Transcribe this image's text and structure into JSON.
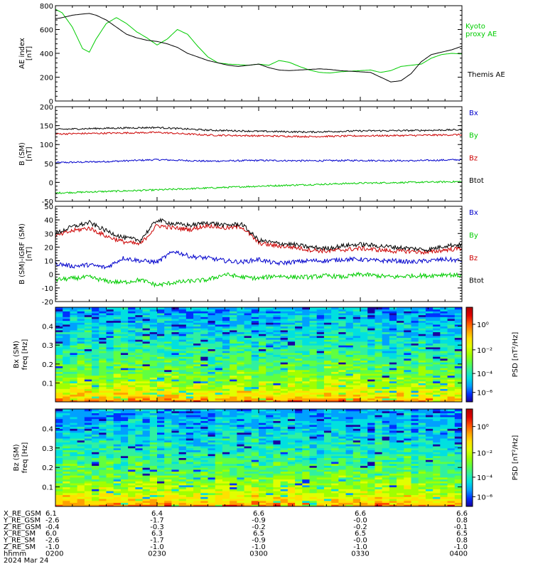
{
  "chart_data": [
    {
      "type": "line",
      "ylabel": "AE index",
      "yunit": "[nT]",
      "ylim": [
        0,
        800
      ],
      "yticks": [
        0,
        200,
        400,
        600,
        800
      ],
      "series": [
        {
          "name": "Kyoto proxy AE",
          "color": "#00cc00",
          "x": [
            0,
            2,
            5,
            8,
            10,
            12,
            15,
            18,
            21,
            24,
            27,
            30,
            33,
            36,
            39,
            42,
            45,
            48,
            51,
            54,
            57,
            60,
            63,
            66,
            69,
            72,
            75,
            78,
            81,
            84,
            87,
            90,
            93,
            96,
            99,
            102,
            105,
            108,
            111,
            114,
            117,
            120
          ],
          "y": [
            770,
            740,
            620,
            440,
            410,
            520,
            650,
            700,
            650,
            580,
            530,
            470,
            520,
            600,
            560,
            460,
            370,
            320,
            310,
            305,
            300,
            310,
            300,
            340,
            325,
            290,
            260,
            240,
            235,
            245,
            250,
            255,
            260,
            240,
            255,
            290,
            300,
            310,
            360,
            390,
            400,
            395
          ]
        },
        {
          "name": "Themis AE",
          "color": "#000000",
          "x": [
            0,
            2,
            5,
            8,
            10,
            12,
            15,
            18,
            21,
            24,
            27,
            30,
            33,
            36,
            39,
            42,
            45,
            48,
            51,
            54,
            57,
            60,
            63,
            66,
            69,
            72,
            75,
            78,
            81,
            84,
            87,
            90,
            93,
            96,
            99,
            102,
            105,
            108,
            111,
            114,
            117,
            120
          ],
          "y": [
            690,
            700,
            720,
            730,
            735,
            720,
            680,
            620,
            560,
            530,
            510,
            500,
            480,
            450,
            400,
            370,
            340,
            320,
            300,
            290,
            300,
            310,
            280,
            260,
            255,
            260,
            265,
            270,
            265,
            255,
            250,
            245,
            240,
            200,
            160,
            170,
            230,
            330,
            390,
            410,
            430,
            460
          ]
        }
      ]
    },
    {
      "type": "line",
      "ylabel": "B (SM)",
      "yunit": "[nT]",
      "ylim": [
        -50,
        200
      ],
      "yticks": [
        -50,
        0,
        50,
        100,
        150,
        200
      ],
      "series": [
        {
          "name": "Bx",
          "color": "#0000cc",
          "x": [
            0,
            15,
            30,
            45,
            60,
            75,
            90,
            105,
            120
          ],
          "y": [
            52,
            55,
            60,
            56,
            58,
            57,
            58,
            57,
            60
          ]
        },
        {
          "name": "By",
          "color": "#00cc00",
          "x": [
            0,
            15,
            30,
            45,
            60,
            75,
            90,
            105,
            120
          ],
          "y": [
            -28,
            -24,
            -20,
            -15,
            -10,
            -6,
            -2,
            0,
            2
          ]
        },
        {
          "name": "Bz",
          "color": "#cc0000",
          "x": [
            0,
            15,
            30,
            45,
            60,
            75,
            90,
            105,
            120
          ],
          "y": [
            128,
            130,
            132,
            125,
            123,
            121,
            123,
            124,
            126
          ]
        },
        {
          "name": "Btot",
          "color": "#000000",
          "x": [
            0,
            15,
            30,
            45,
            60,
            75,
            90,
            105,
            120
          ],
          "y": [
            140,
            143,
            145,
            138,
            135,
            133,
            136,
            137,
            139
          ]
        }
      ]
    },
    {
      "type": "line",
      "ylabel": "B (SM)-IGRF (SM)",
      "yunit": "[nT]",
      "ylim": [
        -20,
        50
      ],
      "yticks": [
        -20,
        -10,
        0,
        10,
        20,
        30,
        40,
        50
      ],
      "series": [
        {
          "name": "Bx",
          "color": "#0000cc",
          "x": [
            0,
            5,
            10,
            15,
            20,
            25,
            30,
            35,
            40,
            45,
            50,
            55,
            60,
            65,
            70,
            75,
            80,
            85,
            90,
            95,
            100,
            105,
            110,
            115,
            120
          ],
          "y": [
            8,
            6,
            7,
            5,
            12,
            10,
            9,
            17,
            13,
            12,
            10,
            9,
            11,
            8,
            9,
            10,
            10,
            11,
            11,
            10,
            10,
            9,
            10,
            11,
            10
          ]
        },
        {
          "name": "By",
          "color": "#00cc00",
          "x": [
            0,
            5,
            10,
            15,
            20,
            25,
            30,
            35,
            40,
            45,
            50,
            55,
            60,
            65,
            70,
            75,
            80,
            85,
            90,
            95,
            100,
            105,
            110,
            115,
            120
          ],
          "y": [
            -4,
            -3,
            -2,
            -5,
            -6,
            -4,
            -8,
            -6,
            -5,
            -4,
            0,
            -2,
            -3,
            -1,
            -2,
            -2,
            -1,
            -2,
            0,
            -1,
            -2,
            -1,
            -1,
            0,
            -1
          ]
        },
        {
          "name": "Bz",
          "color": "#cc0000",
          "x": [
            0,
            5,
            10,
            15,
            20,
            25,
            30,
            35,
            40,
            45,
            50,
            55,
            60,
            65,
            70,
            75,
            80,
            85,
            90,
            95,
            100,
            105,
            110,
            115,
            120
          ],
          "y": [
            28,
            32,
            34,
            28,
            24,
            22,
            36,
            34,
            33,
            36,
            34,
            35,
            23,
            21,
            20,
            18,
            17,
            18,
            19,
            18,
            17,
            17,
            16,
            18,
            19
          ]
        },
        {
          "name": "Btot",
          "color": "#000000",
          "x": [
            0,
            5,
            10,
            15,
            20,
            25,
            30,
            35,
            40,
            45,
            50,
            55,
            60,
            65,
            70,
            75,
            80,
            85,
            90,
            95,
            100,
            105,
            110,
            115,
            120
          ],
          "y": [
            30,
            35,
            38,
            32,
            27,
            25,
            40,
            37,
            36,
            38,
            36,
            37,
            25,
            23,
            22,
            20,
            19,
            21,
            22,
            21,
            20,
            19,
            18,
            21,
            22
          ]
        }
      ]
    },
    {
      "type": "heatmap",
      "ylabel": "Bx (SM)",
      "ylabel2": "freq",
      "yunit": "[Hz]",
      "ylim": [
        0,
        0.5
      ],
      "yticks": [
        0.1,
        0.2,
        0.3,
        0.4
      ],
      "colorbar_label": "PSD [nT²/Hz]",
      "colorbar_ticks": [
        "10⁰",
        "10⁻²",
        "10⁻⁴",
        "10⁻⁶"
      ]
    },
    {
      "type": "heatmap",
      "ylabel": "Bz (SM)",
      "ylabel2": "freq",
      "yunit": "[Hz]",
      "ylim": [
        0,
        0.5
      ],
      "yticks": [
        0.1,
        0.2,
        0.3,
        0.4
      ],
      "colorbar_label": "PSD [nT²/Hz]",
      "colorbar_ticks": [
        "10⁰",
        "10⁻²",
        "10⁻⁴",
        "10⁻⁶"
      ]
    }
  ],
  "ephemeris": {
    "rows": [
      {
        "label": "X_RE_GSM",
        "values": [
          "6.1",
          "6.4",
          "6.6",
          "6.6",
          "6.6"
        ]
      },
      {
        "label": "Y_RE_GSM",
        "values": [
          "-2.6",
          "-1.7",
          "-0.9",
          "-0.0",
          "0.8"
        ]
      },
      {
        "label": "Z_RE_GSM",
        "values": [
          "-0.4",
          "-0.3",
          "-0.2",
          "-0.2",
          "-0.1"
        ]
      },
      {
        "label": "X_RE_SM",
        "values": [
          "6.0",
          "6.3",
          "6.5",
          "6.5",
          "6.5"
        ]
      },
      {
        "label": "Y_RE_SM",
        "values": [
          "-2.6",
          "-1.7",
          "-0.9",
          "-0.0",
          "0.8"
        ]
      },
      {
        "label": "Z_RE_SM",
        "values": [
          "-1.0",
          "-1.0",
          "-1.0",
          "-1.0",
          "-1.0"
        ]
      },
      {
        "label": "hhmm",
        "values": [
          "0200",
          "0230",
          "0300",
          "0330",
          "0400"
        ]
      }
    ],
    "date": "2024 Mar 24"
  },
  "time_axis": {
    "range_minutes": [
      0,
      120
    ],
    "major_ticks": [
      0,
      30,
      60,
      90,
      120
    ]
  }
}
